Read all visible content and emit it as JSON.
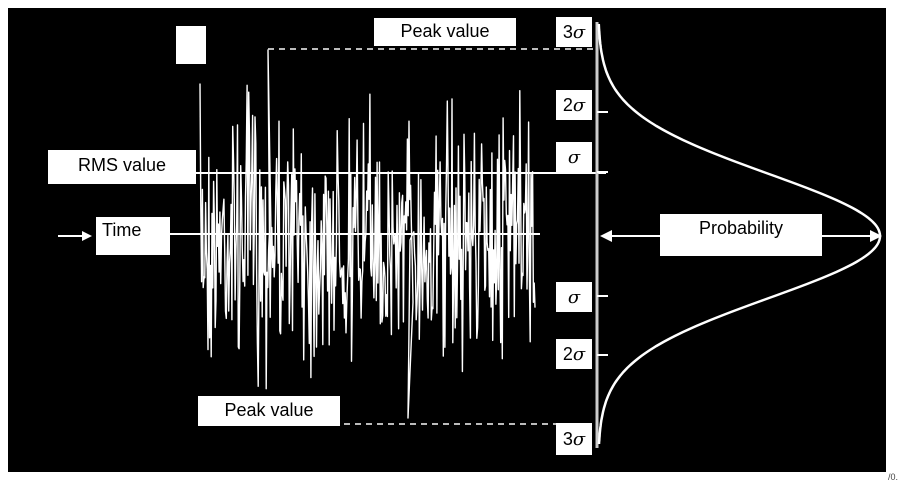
{
  "labels": {
    "peak_top": "Peak value",
    "peak_bottom": "Peak value",
    "rms": "RMS value",
    "time": "Time",
    "probability": "Probability"
  },
  "sigma_marks": {
    "top_3": {
      "num": "3",
      "sym": "σ"
    },
    "top_2": {
      "num": "2",
      "sym": "σ"
    },
    "top_1": {
      "num": "",
      "sym": "σ"
    },
    "bottom_1": {
      "num": "",
      "sym": "σ"
    },
    "bottom_2": {
      "num": "2",
      "sym": "σ"
    },
    "bottom_3": {
      "num": "3",
      "sym": "σ"
    }
  },
  "corner_mark": "/0.",
  "colors": {
    "background": "#000000",
    "foreground": "#ffffff",
    "outer": "#ffffff",
    "dashed": "#bbbbbb"
  }
}
